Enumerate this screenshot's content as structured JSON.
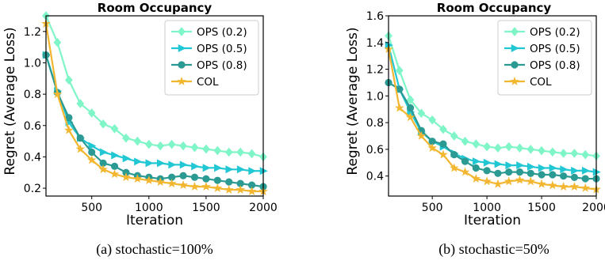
{
  "chart_data": [
    {
      "type": "line",
      "title": "Room Occupancy",
      "xlabel": "Iteration",
      "ylabel": "Regret (Average Loss)",
      "caption": "(a) stochastic=100%",
      "xlim": [
        100,
        2000
      ],
      "ylim": [
        0.15,
        1.3
      ],
      "xticks": [
        500,
        1000,
        1500,
        2000
      ],
      "yticks": [
        0.2,
        0.4,
        0.6,
        0.8,
        1.0,
        1.2
      ],
      "ytick_labels": [
        "0.2",
        "0.4",
        "0.6",
        "0.8",
        "1.0",
        "1.2"
      ],
      "legend_position": "top-right",
      "x": [
        100,
        200,
        300,
        400,
        500,
        600,
        700,
        800,
        900,
        1000,
        1100,
        1200,
        1300,
        1400,
        1500,
        1600,
        1700,
        1800,
        1900,
        2000
      ],
      "series": [
        {
          "name": "OPS (0.2)",
          "color": "#7ff5c8",
          "marker": "diamond",
          "values": [
            1.3,
            1.13,
            0.89,
            0.74,
            0.68,
            0.61,
            0.58,
            0.52,
            0.5,
            0.48,
            0.47,
            0.48,
            0.47,
            0.46,
            0.45,
            0.44,
            0.43,
            0.43,
            0.42,
            0.4
          ]
        },
        {
          "name": "OPS (0.5)",
          "color": "#22c7d4",
          "marker": "triangle-right",
          "values": [
            1.05,
            0.82,
            0.62,
            0.52,
            0.47,
            0.43,
            0.41,
            0.39,
            0.37,
            0.36,
            0.36,
            0.35,
            0.35,
            0.34,
            0.33,
            0.33,
            0.32,
            0.32,
            0.31,
            0.31
          ]
        },
        {
          "name": "OPS (0.8)",
          "color": "#2a9a93",
          "marker": "circle",
          "values": [
            1.05,
            0.81,
            0.65,
            0.52,
            0.43,
            0.36,
            0.34,
            0.3,
            0.28,
            0.27,
            0.26,
            0.27,
            0.28,
            0.27,
            0.26,
            0.25,
            0.24,
            0.23,
            0.22,
            0.21
          ]
        },
        {
          "name": "COL",
          "color": "#f2b630",
          "marker": "star",
          "values": [
            1.25,
            0.8,
            0.57,
            0.45,
            0.38,
            0.32,
            0.29,
            0.27,
            0.26,
            0.25,
            0.24,
            0.23,
            0.22,
            0.21,
            0.21,
            0.2,
            0.19,
            0.19,
            0.18,
            0.18
          ]
        }
      ]
    },
    {
      "type": "line",
      "title": "Room Occupancy",
      "xlabel": "Iteration",
      "ylabel": "Regret (Average Loss)",
      "caption": "(b) stochastic=50%",
      "xlim": [
        100,
        2000
      ],
      "ylim": [
        0.25,
        1.6
      ],
      "xticks": [
        500,
        1000,
        1500,
        2000
      ],
      "yticks": [
        0.4,
        0.6,
        0.8,
        1.0,
        1.2,
        1.4,
        1.6
      ],
      "ytick_labels": [
        "0.4",
        "0.6",
        "0.8",
        "1.0",
        "1.2",
        "1.4",
        "1.6"
      ],
      "legend_position": "top-right",
      "x": [
        100,
        200,
        300,
        400,
        500,
        600,
        700,
        800,
        900,
        1000,
        1100,
        1200,
        1300,
        1400,
        1500,
        1600,
        1700,
        1800,
        1900,
        2000
      ],
      "series": [
        {
          "name": "OPS (0.2)",
          "color": "#7ff5c8",
          "marker": "diamond",
          "values": [
            1.45,
            1.19,
            0.97,
            0.87,
            0.82,
            0.75,
            0.7,
            0.66,
            0.64,
            0.62,
            0.61,
            0.62,
            0.61,
            0.6,
            0.59,
            0.58,
            0.57,
            0.57,
            0.56,
            0.55
          ]
        },
        {
          "name": "OPS (0.5)",
          "color": "#22c7d4",
          "marker": "triangle-right",
          "values": [
            1.38,
            1.05,
            0.88,
            0.73,
            0.66,
            0.62,
            0.57,
            0.53,
            0.51,
            0.5,
            0.49,
            0.48,
            0.48,
            0.47,
            0.46,
            0.46,
            0.45,
            0.44,
            0.44,
            0.43
          ]
        },
        {
          "name": "OPS (0.8)",
          "color": "#2a9a93",
          "marker": "circle",
          "values": [
            1.1,
            1.05,
            0.91,
            0.74,
            0.66,
            0.64,
            0.56,
            0.51,
            0.46,
            0.44,
            0.42,
            0.43,
            0.43,
            0.42,
            0.41,
            0.41,
            0.4,
            0.39,
            0.38,
            0.38
          ]
        },
        {
          "name": "COL",
          "color": "#f2b630",
          "marker": "star",
          "values": [
            1.35,
            0.91,
            0.84,
            0.7,
            0.61,
            0.56,
            0.46,
            0.43,
            0.38,
            0.36,
            0.34,
            0.36,
            0.37,
            0.36,
            0.34,
            0.33,
            0.32,
            0.32,
            0.31,
            0.3
          ]
        }
      ]
    }
  ]
}
